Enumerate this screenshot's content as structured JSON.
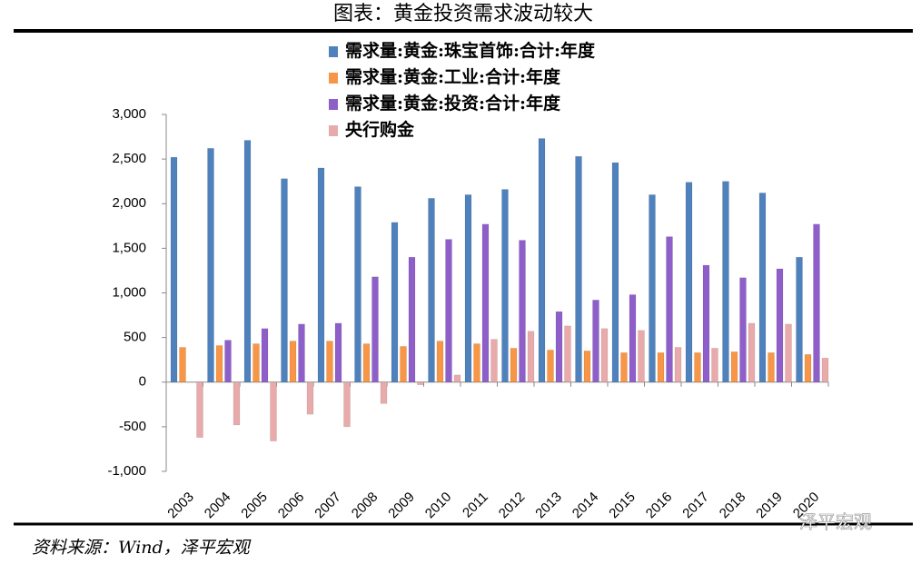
{
  "chart_data": {
    "type": "bar",
    "title": "图表：黄金投资需求波动较大",
    "source": "资料来源：Wind，泽平宏观",
    "watermark": "泽平宏观",
    "categories": [
      "2003",
      "2004",
      "2005",
      "2006",
      "2007",
      "2008",
      "2009",
      "2010",
      "2011",
      "2012",
      "2013",
      "2014",
      "2015",
      "2016",
      "2017",
      "2018",
      "2019",
      "2020"
    ],
    "series": [
      {
        "name": "需求量:黄金:珠宝首饰:合计:年度",
        "color": "#4f81bd",
        "values": [
          2520,
          2620,
          2710,
          2280,
          2400,
          2190,
          1790,
          2060,
          2100,
          2160,
          2730,
          2530,
          2460,
          2100,
          2240,
          2250,
          2120,
          1400
        ]
      },
      {
        "name": "需求量:黄金:工业:合计:年度",
        "color": "#f79646",
        "values": [
          390,
          410,
          430,
          460,
          460,
          430,
          400,
          460,
          430,
          380,
          360,
          350,
          330,
          330,
          330,
          340,
          330,
          310
        ]
      },
      {
        "name": "需求量:黄金:投资:合计:年度",
        "color": "#8e5fc9",
        "values": [
          null,
          470,
          600,
          650,
          660,
          1180,
          1400,
          1600,
          1770,
          1590,
          790,
          920,
          980,
          1630,
          1310,
          1170,
          1270,
          1770
        ]
      },
      {
        "name": "央行购金",
        "color": "#e8aaaa",
        "values": [
          -620,
          -480,
          -660,
          -360,
          -500,
          -240,
          -30,
          80,
          480,
          570,
          630,
          600,
          580,
          390,
          380,
          660,
          650,
          270
        ]
      }
    ],
    "ylim": [
      -1000,
      3000
    ],
    "yticks": [
      {
        "value": -1000,
        "label": "-1,000"
      },
      -500,
      0,
      500,
      {
        "value": 1000,
        "label": "1,000"
      },
      {
        "value": 1500,
        "label": "1,500"
      },
      {
        "value": 2000,
        "label": "2,000"
      },
      {
        "value": 2500,
        "label": "2,500"
      },
      {
        "value": 3000,
        "label": "3,000"
      }
    ]
  }
}
